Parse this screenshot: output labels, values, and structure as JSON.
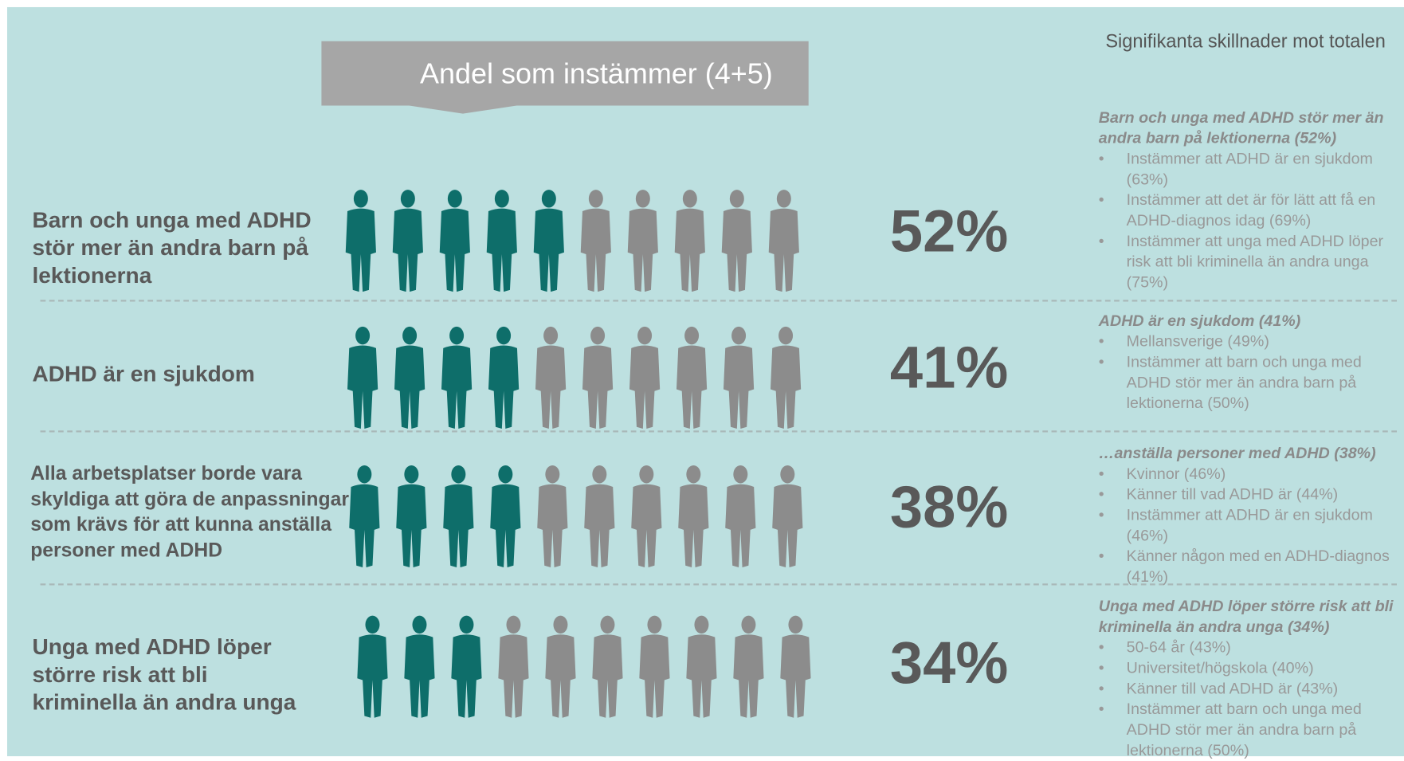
{
  "header": "Andel som instämmer (4+5)",
  "side_title": "Signifikanta skillnader mot totalen",
  "rows": [
    {
      "label": "Barn och unga med ADHD stör mer än andra barn på lektionerna",
      "value": 52,
      "value_label": "52%",
      "note_title": "Barn och unga med ADHD stör mer än andra barn på lektionerna (52%)",
      "notes": [
        "Instämmer att ADHD är en sjukdom (63%)",
        "Instämmer att det är för lätt att få en ADHD-diagnos idag (69%)",
        "Instämmer att unga med ADHD löper risk att bli kriminella än andra unga (75%)"
      ]
    },
    {
      "label": "ADHD är en sjukdom",
      "value": 41,
      "value_label": "41%",
      "note_title": "ADHD är en sjukdom (41%)",
      "notes": [
        "Mellansverige (49%)",
        "Instämmer att barn och unga med ADHD stör mer än andra barn på lektionerna (50%)"
      ]
    },
    {
      "label": "Alla arbetsplatser borde vara skyldiga att göra de anpassningar som krävs för att kunna anställa personer med ADHD",
      "value": 38,
      "value_label": "38%",
      "note_title": "…anställa personer med ADHD (38%)",
      "notes": [
        "Kvinnor (46%)",
        "Känner till vad ADHD är (44%)",
        "Instämmer att ADHD är en sjukdom (46%)",
        "Känner någon med en ADHD-diagnos (41%)"
      ]
    },
    {
      "label": "Unga med ADHD löper större risk att bli kriminella än andra unga",
      "value": 34,
      "value_label": "34%",
      "note_title": "Unga med ADHD löper större risk att bli kriminella än andra unga (34%)",
      "notes": [
        "50-64 år (43%)",
        "Universitet/högskola (40%)",
        "Känner till vad ADHD är (43%)",
        "Instämmer att barn och unga med ADHD stör mer än andra barn på lektionerna (50%)"
      ]
    }
  ]
}
